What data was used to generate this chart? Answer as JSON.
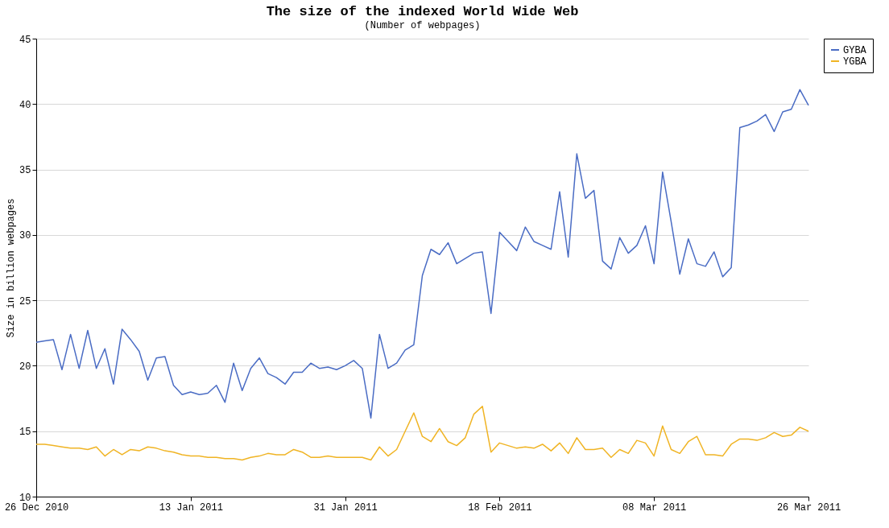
{
  "chart_data": {
    "type": "line",
    "title": "The size of the indexed World Wide Web",
    "subtitle": "(Number of webpages)",
    "ylabel": "Size in billion webpages",
    "x": [
      "2010-12-26",
      "2010-12-27",
      "2010-12-28",
      "2010-12-29",
      "2010-12-30",
      "2010-12-31",
      "2011-01-01",
      "2011-01-02",
      "2011-01-03",
      "2011-01-04",
      "2011-01-05",
      "2011-01-06",
      "2011-01-07",
      "2011-01-08",
      "2011-01-09",
      "2011-01-10",
      "2011-01-11",
      "2011-01-12",
      "2011-01-13",
      "2011-01-14",
      "2011-01-15",
      "2011-01-16",
      "2011-01-17",
      "2011-01-18",
      "2011-01-19",
      "2011-01-20",
      "2011-01-21",
      "2011-01-22",
      "2011-01-23",
      "2011-01-24",
      "2011-01-25",
      "2011-01-26",
      "2011-01-27",
      "2011-01-28",
      "2011-01-29",
      "2011-01-30",
      "2011-01-31",
      "2011-02-01",
      "2011-02-02",
      "2011-02-03",
      "2011-02-04",
      "2011-02-05",
      "2011-02-06",
      "2011-02-07",
      "2011-02-08",
      "2011-02-09",
      "2011-02-10",
      "2011-02-11",
      "2011-02-12",
      "2011-02-13",
      "2011-02-14",
      "2011-02-15",
      "2011-02-16",
      "2011-02-17",
      "2011-02-18",
      "2011-02-19",
      "2011-02-20",
      "2011-02-21",
      "2011-02-22",
      "2011-02-23",
      "2011-02-24",
      "2011-02-25",
      "2011-02-26",
      "2011-02-27",
      "2011-02-28",
      "2011-03-01",
      "2011-03-02",
      "2011-03-03",
      "2011-03-04",
      "2011-03-05",
      "2011-03-06",
      "2011-03-07",
      "2011-03-08",
      "2011-03-09",
      "2011-03-10",
      "2011-03-11",
      "2011-03-12",
      "2011-03-13",
      "2011-03-14",
      "2011-03-15",
      "2011-03-16",
      "2011-03-17",
      "2011-03-18",
      "2011-03-19",
      "2011-03-20",
      "2011-03-21",
      "2011-03-22",
      "2011-03-23",
      "2011-03-24",
      "2011-03-25",
      "2011-03-26"
    ],
    "series": [
      {
        "name": "GYBA",
        "color": "#4a6cc4",
        "values": [
          21.8,
          21.9,
          22.0,
          19.7,
          22.4,
          19.8,
          22.7,
          19.8,
          21.3,
          18.6,
          22.8,
          22.0,
          21.1,
          18.9,
          20.6,
          20.7,
          18.5,
          17.8,
          18.0,
          17.8,
          17.9,
          18.5,
          17.2,
          20.2,
          18.1,
          19.8,
          20.6,
          19.4,
          19.1,
          18.6,
          19.5,
          19.5,
          20.2,
          19.8,
          19.9,
          19.7,
          20.0,
          20.4,
          19.8,
          16.0,
          22.4,
          19.8,
          20.2,
          21.2,
          21.6,
          26.9,
          28.9,
          28.5,
          29.4,
          27.8,
          28.2,
          28.6,
          28.7,
          24.0,
          30.2,
          29.5,
          28.8,
          30.6,
          29.5,
          29.2,
          28.9,
          33.3,
          28.3,
          36.2,
          32.8,
          33.4,
          28.0,
          27.4,
          29.8,
          28.6,
          29.2,
          30.7,
          27.8,
          34.8,
          31.0,
          27.0,
          29.7,
          27.8,
          27.6,
          28.7,
          26.8,
          27.5,
          38.2,
          38.4,
          38.7,
          39.2,
          37.9,
          39.4,
          39.6,
          41.1,
          39.9
        ]
      },
      {
        "name": "YGBA",
        "color": "#f0b424",
        "values": [
          14.0,
          14.0,
          13.9,
          13.8,
          13.7,
          13.7,
          13.6,
          13.8,
          13.1,
          13.6,
          13.2,
          13.6,
          13.5,
          13.8,
          13.7,
          13.5,
          13.4,
          13.2,
          13.1,
          13.1,
          13.0,
          13.0,
          12.9,
          12.9,
          12.8,
          13.0,
          13.1,
          13.3,
          13.2,
          13.2,
          13.6,
          13.4,
          13.0,
          13.0,
          13.1,
          13.0,
          13.0,
          13.0,
          13.0,
          12.8,
          13.8,
          13.1,
          13.6,
          15.0,
          16.4,
          14.6,
          14.2,
          15.2,
          14.2,
          13.9,
          14.5,
          16.3,
          16.9,
          13.4,
          14.1,
          13.9,
          13.7,
          13.8,
          13.7,
          14.0,
          13.5,
          14.1,
          13.3,
          14.5,
          13.6,
          13.6,
          13.7,
          13.0,
          13.6,
          13.3,
          14.3,
          14.1,
          13.1,
          15.4,
          13.6,
          13.3,
          14.2,
          14.6,
          13.2,
          13.2,
          13.1,
          14.0,
          14.4,
          14.4,
          14.3,
          14.5,
          14.9,
          14.6,
          14.7,
          15.3,
          15.0
        ]
      }
    ],
    "xlim": [
      "2010-12-26",
      "2011-03-26"
    ],
    "xticks": [
      {
        "value": "2010-12-26",
        "label": "26 Dec 2010"
      },
      {
        "value": "2011-01-13",
        "label": "13 Jan 2011"
      },
      {
        "value": "2011-01-31",
        "label": "31 Jan 2011"
      },
      {
        "value": "2011-02-18",
        "label": "18 Feb 2011"
      },
      {
        "value": "2011-03-08",
        "label": "08 Mar 2011"
      },
      {
        "value": "2011-03-26",
        "label": "26 Mar 2011"
      }
    ],
    "ylim": [
      10,
      45
    ],
    "yticks": [
      10,
      15,
      20,
      25,
      30,
      35,
      40,
      45
    ],
    "grid": "y",
    "legend": "right",
    "marker": "none",
    "line_style": "solid"
  }
}
